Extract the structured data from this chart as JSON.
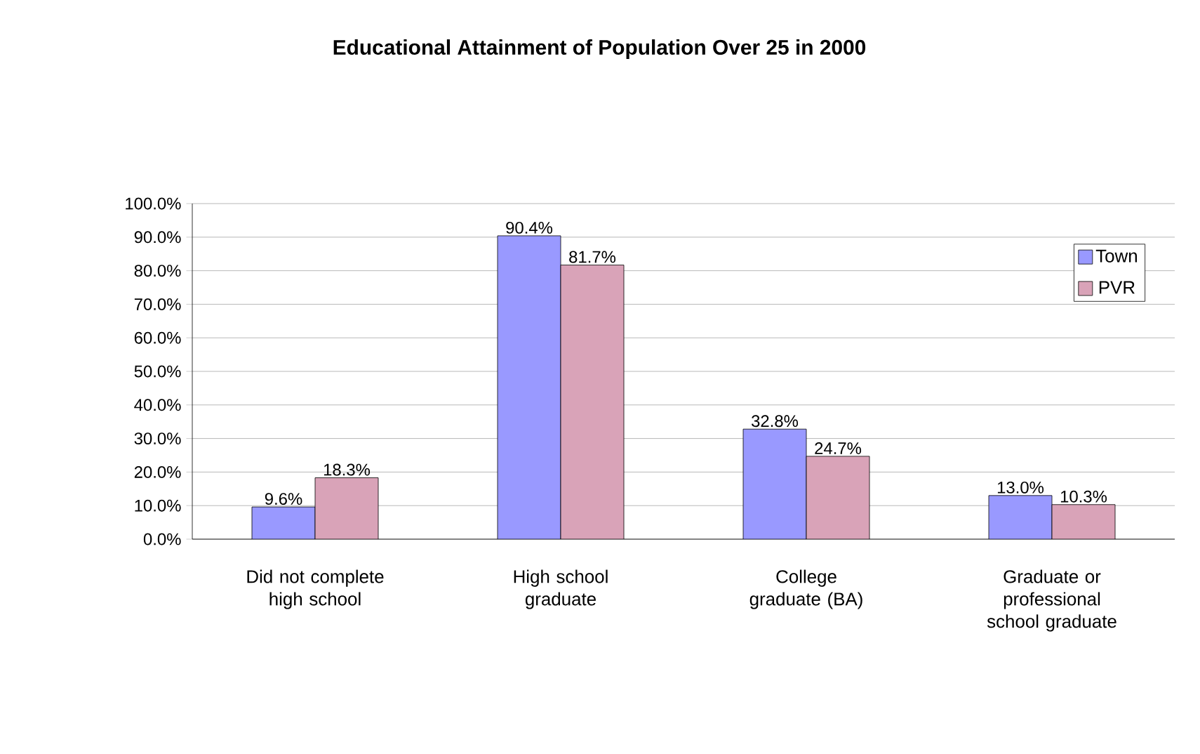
{
  "chart_data": {
    "type": "bar",
    "title": "Educational Attainment of Population Over 25 in 2000",
    "categories": [
      "Did not complete high school",
      "High school graduate",
      "College graduate (BA)",
      "Graduate or professional school graduate"
    ],
    "series": [
      {
        "name": "Town",
        "color": "#9999ff",
        "values": [
          9.6,
          90.4,
          32.8,
          13.0
        ],
        "value_labels": [
          "9.6%",
          "90.4%",
          "32.8%",
          "13.0%"
        ]
      },
      {
        "name": "PVR",
        "color": "#d9a3b8",
        "values": [
          18.3,
          81.7,
          24.7,
          10.3
        ],
        "value_labels": [
          "18.3%",
          "81.7%",
          "24.7%",
          "10.3%"
        ]
      }
    ],
    "ylim": [
      0,
      100
    ],
    "yticks": [
      {
        "value": 0,
        "label": "0.0%"
      },
      {
        "value": 10,
        "label": "10.0%"
      },
      {
        "value": 20,
        "label": "20.0%"
      },
      {
        "value": 30,
        "label": "30.0%"
      },
      {
        "value": 40,
        "label": "40.0%"
      },
      {
        "value": 50,
        "label": "50.0%"
      },
      {
        "value": 60,
        "label": "60.0%"
      },
      {
        "value": 70,
        "label": "70.0%"
      },
      {
        "value": 80,
        "label": "80.0%"
      },
      {
        "value": 90,
        "label": "90.0%"
      },
      {
        "value": 100,
        "label": "100.0%"
      }
    ],
    "grid": "y",
    "legend": "right"
  }
}
